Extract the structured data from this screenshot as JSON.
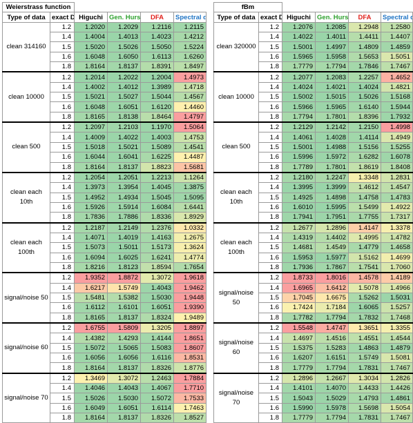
{
  "col_headers": {
    "type": "Type of data",
    "exact": "exact D",
    "higuchi": "Higuchi",
    "hurst": "Gen. Hurst",
    "dfa": "DFA",
    "spectral": "Spectral decay"
  },
  "d_values": [
    "1.2",
    "1.4",
    "1.5",
    "1.6",
    "1.8"
  ],
  "palette": {
    "green": "#63be7b",
    "yellow": "#ffeb84",
    "red": "#f8696b",
    "min": 0,
    "max": 0.3
  },
  "tables": [
    {
      "title": "Weierstrass function",
      "groups": [
        {
          "label": "clean 314160",
          "rows": [
            [
              "1.2020",
              "1.2029",
              "1.2116",
              "1.2115"
            ],
            [
              "1.4004",
              "1.4013",
              "1.4023",
              "1.4212"
            ],
            [
              "1.5020",
              "1.5026",
              "1.5050",
              "1.5224"
            ],
            [
              "1.6048",
              "1.6050",
              "1.6113",
              "1.6260"
            ],
            [
              "1.8164",
              "1.8137",
              "1.8391",
              "1.8497"
            ]
          ]
        },
        {
          "label": "clean 10000",
          "rows": [
            [
              "1.2014",
              "1.2022",
              "1.2004",
              "1.4973"
            ],
            [
              "1.4002",
              "1.4012",
              "1.3989",
              "1.4718"
            ],
            [
              "1.5021",
              "1.5027",
              "1.5044",
              "1.4567"
            ],
            [
              "1.6048",
              "1.6051",
              "1.6120",
              "1.4460"
            ],
            [
              "1.8165",
              "1.8138",
              "1.8464",
              "1.4797"
            ]
          ]
        },
        {
          "label": "clean 500",
          "rows": [
            [
              "1.2097",
              "1.2103",
              "1.1970",
              "1.5064"
            ],
            [
              "1.4009",
              "1.4022",
              "1.4003",
              "1.4753"
            ],
            [
              "1.5018",
              "1.5021",
              "1.5089",
              "1.4541"
            ],
            [
              "1.6044",
              "1.6041",
              "1.6225",
              "1.4487"
            ],
            [
              "1.8164",
              "1.8137",
              "1.8823",
              "1.5681"
            ]
          ]
        },
        {
          "label": "clean each 10th",
          "rows": [
            [
              "1.2054",
              "1.2051",
              "1.2213",
              "1.1264"
            ],
            [
              "1.3973",
              "1.3954",
              "1.4045",
              "1.3875"
            ],
            [
              "1.4952",
              "1.4934",
              "1.5045",
              "1.5095"
            ],
            [
              "1.5926",
              "1.5914",
              "1.6084",
              "1.6441"
            ],
            [
              "1.7836",
              "1.7886",
              "1.8336",
              "1.8929"
            ]
          ]
        },
        {
          "label": "clean each 100th",
          "rows": [
            [
              "1.2187",
              "1.2149",
              "1.2376",
              "1.0332"
            ],
            [
              "1.4071",
              "1.4019",
              "1.4163",
              "1.2675"
            ],
            [
              "1.5073",
              "1.5011",
              "1.5173",
              "1.3624"
            ],
            [
              "1.6094",
              "1.6025",
              "1.6241",
              "1.4774"
            ],
            [
              "1.8216",
              "1.8123",
              "1.8594",
              "1.7654"
            ]
          ]
        },
        {
          "label": "signal/noise 50",
          "rows": [
            [
              "1.9352",
              "1.8872",
              "1.3072",
              "1.9618"
            ],
            [
              "1.6217",
              "1.5749",
              "1.4043",
              "1.9462"
            ],
            [
              "1.5481",
              "1.5382",
              "1.5030",
              "1.9448"
            ],
            [
              "1.6112",
              "1.6101",
              "1.6051",
              "1.9390"
            ],
            [
              "1.8165",
              "1.8137",
              "1.8324",
              "1.9489"
            ]
          ]
        },
        {
          "label": "signal/noise 60",
          "rows": [
            [
              "1.6755",
              "1.5809",
              "1.3205",
              "1.8897"
            ],
            [
              "1.4382",
              "1.4293",
              "1.4144",
              "1.8651"
            ],
            [
              "1.5072",
              "1.5065",
              "1.5083",
              "1.8607"
            ],
            [
              "1.6056",
              "1.6056",
              "1.6116",
              "1.8531"
            ],
            [
              "1.8164",
              "1.8137",
              "1.8326",
              "1.8776"
            ]
          ]
        },
        {
          "label": "signal/noise 70",
          "rows": [
            [
              "1.3469",
              "1.3072",
              "1.2463",
              "1.7884"
            ],
            [
              "1.4046",
              "1.4043",
              "1.4067",
              "1.7710"
            ],
            [
              "1.5026",
              "1.5030",
              "1.5072",
              "1.7533"
            ],
            [
              "1.6049",
              "1.6051",
              "1.6114",
              "1.7463"
            ],
            [
              "1.8164",
              "1.8137",
              "1.8326",
              "1.8527"
            ]
          ]
        }
      ]
    },
    {
      "title": "fBm",
      "groups": [
        {
          "label": "clean 320000",
          "rows": [
            [
              "1.2076",
              "1.2085",
              "1.2948",
              "1.2580"
            ],
            [
              "1.4022",
              "1.4011",
              "1.4411",
              "1.4407"
            ],
            [
              "1.5001",
              "1.4997",
              "1.4809",
              "1.4859"
            ],
            [
              "1.5965",
              "1.5958",
              "1.5653",
              "1.5051"
            ],
            [
              "1.7779",
              "1.7794",
              "1.7846",
              "1.7467"
            ]
          ]
        },
        {
          "label": "clean 10000",
          "rows": [
            [
              "1.2077",
              "1.2083",
              "1.2257",
              "1.4652"
            ],
            [
              "1.4024",
              "1.4021",
              "1.4024",
              "1.4821"
            ],
            [
              "1.5002",
              "1.5015",
              "1.5026",
              "1.5168"
            ],
            [
              "1.5966",
              "1.5965",
              "1.6140",
              "1.5944"
            ],
            [
              "1.7794",
              "1.7801",
              "1.8396",
              "1.7932"
            ]
          ]
        },
        {
          "label": "clean 500",
          "rows": [
            [
              "1.2129",
              "1.2142",
              "1.2150",
              "1.4998"
            ],
            [
              "1.4061",
              "1.4028",
              "1.4114",
              "1.4949"
            ],
            [
              "1.5001",
              "1.4988",
              "1.5156",
              "1.5255"
            ],
            [
              "1.5996",
              "1.5972",
              "1.6282",
              "1.6078"
            ],
            [
              "1.7789",
              "1.7801",
              "1.8619",
              "1.8408"
            ]
          ]
        },
        {
          "label": "clean each 10th",
          "rows": [
            [
              "1.2180",
              "1.2247",
              "1.3348",
              "1.2831"
            ],
            [
              "1.3995",
              "1.3999",
              "1.4612",
              "1.4547"
            ],
            [
              "1.4925",
              "1.4898",
              "1.4758",
              "1.4783"
            ],
            [
              "1.6010",
              "1.5995",
              "1.5499",
              "1.4922"
            ],
            [
              "1.7941",
              "1.7951",
              "1.7755",
              "1.7317"
            ]
          ]
        },
        {
          "label": "clean each 100th",
          "rows": [
            [
              "1.2677",
              "1.2896",
              "1.4147",
              "1.3378"
            ],
            [
              "1.4319",
              "1.4402",
              "1.4995",
              "1.4782"
            ],
            [
              "1.4681",
              "1.4549",
              "1.4779",
              "1.4658"
            ],
            [
              "1.5953",
              "1.5977",
              "1.5162",
              "1.4699"
            ],
            [
              "1.7936",
              "1.7867",
              "1.7541",
              "1.7060"
            ]
          ]
        },
        {
          "label": "signal/noise 50",
          "rows": [
            [
              "1.8733",
              "1.8016",
              "1.4578",
              "1.4189"
            ],
            [
              "1.6965",
              "1.6412",
              "1.5078",
              "1.4966"
            ],
            [
              "1.7045",
              "1.6675",
              "1.5262",
              "1.5031"
            ],
            [
              "1.7424",
              "1.7184",
              "1.6065",
              "1.5257"
            ],
            [
              "1.7782",
              "1.7794",
              "1.7832",
              "1.7468"
            ]
          ]
        },
        {
          "label": "signal/noise 60",
          "rows": [
            [
              "1.5548",
              "1.4747",
              "1.3651",
              "1.3355"
            ],
            [
              "1.4697",
              "1.4516",
              "1.4551",
              "1.4544"
            ],
            [
              "1.5375",
              "1.5283",
              "1.4863",
              "1.4879"
            ],
            [
              "1.6207",
              "1.6151",
              "1.5749",
              "1.5081"
            ],
            [
              "1.7779",
              "1.7794",
              "1.7831",
              "1.7467"
            ]
          ]
        },
        {
          "label": "signal/noise 70",
          "rows": [
            [
              "1.2896",
              "1.2667",
              "1.3034",
              "1.2826"
            ],
            [
              "1.4101",
              "1.4070",
              "1.4433",
              "1.4426"
            ],
            [
              "1.5043",
              "1.5029",
              "1.4793",
              "1.4861"
            ],
            [
              "1.5990",
              "1.5978",
              "1.5698",
              "1.5054"
            ],
            [
              "1.7779",
              "1.7794",
              "1.7831",
              "1.7467"
            ]
          ]
        }
      ]
    }
  ]
}
